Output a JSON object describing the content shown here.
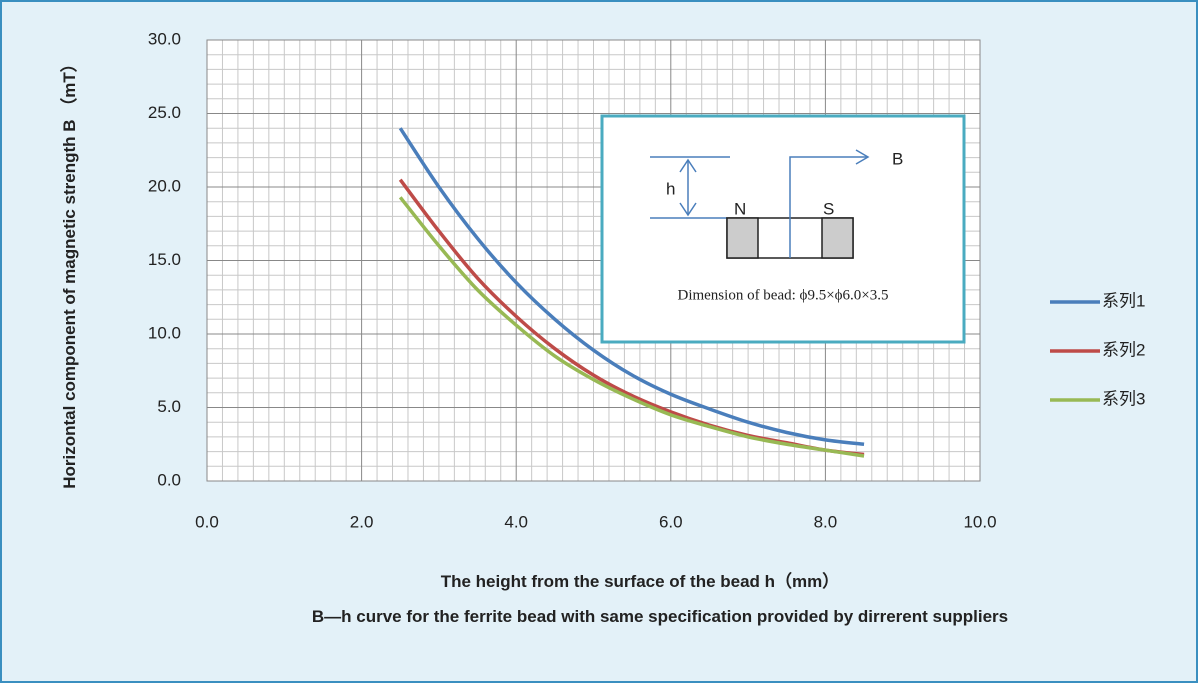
{
  "chart_data": {
    "type": "line",
    "title": "B—h curve for the ferrite bead with same specification provided by  dirrerent suppliers",
    "xlabel": "The height from the surface of the bead  h（mm）",
    "ylabel": "Horizontal component of magnetic strength B （mT）",
    "x": [
      2.5,
      3.0,
      3.5,
      4.0,
      4.5,
      5.0,
      5.5,
      6.0,
      6.5,
      7.0,
      7.5,
      8.0,
      8.5
    ],
    "series": [
      {
        "name": "系列1",
        "color": "#4a7ebb",
        "values": [
          24.0,
          20.0,
          16.5,
          13.5,
          11.0,
          8.9,
          7.2,
          5.9,
          4.9,
          4.0,
          3.3,
          2.8,
          2.5
        ]
      },
      {
        "name": "系列2",
        "color": "#be4b48",
        "values": [
          20.5,
          17.0,
          13.8,
          11.2,
          9.0,
          7.2,
          5.8,
          4.7,
          3.8,
          3.1,
          2.6,
          2.1,
          1.8
        ]
      },
      {
        "name": "系列3",
        "color": "#98b954",
        "values": [
          19.3,
          16.0,
          13.0,
          10.6,
          8.5,
          6.9,
          5.6,
          4.5,
          3.7,
          3.0,
          2.5,
          2.1,
          1.7
        ]
      }
    ],
    "xlim": [
      0,
      10
    ],
    "xticks": [
      {
        "value": 0,
        "label": "0.0"
      },
      {
        "value": 2,
        "label": "2.0"
      },
      {
        "value": 4,
        "label": "4.0"
      },
      {
        "value": 6,
        "label": "6.0"
      },
      {
        "value": 8,
        "label": "8.0"
      },
      {
        "value": 10,
        "label": "10.0"
      }
    ],
    "ylim": [
      0,
      30
    ],
    "yticks": [
      {
        "value": 0,
        "label": "0.0"
      },
      {
        "value": 5,
        "label": "5.0"
      },
      {
        "value": 10,
        "label": "10.0"
      },
      {
        "value": 15,
        "label": "15.0"
      },
      {
        "value": 20,
        "label": "20.0"
      },
      {
        "value": 25,
        "label": "25.0"
      },
      {
        "value": 30,
        "label": "30.0"
      }
    ],
    "grid": true,
    "legend": "right",
    "annotations": [
      "h",
      "N",
      "S",
      "B",
      "Dimension of  bead: ϕ9.5×ϕ6.0×3.5"
    ]
  }
}
